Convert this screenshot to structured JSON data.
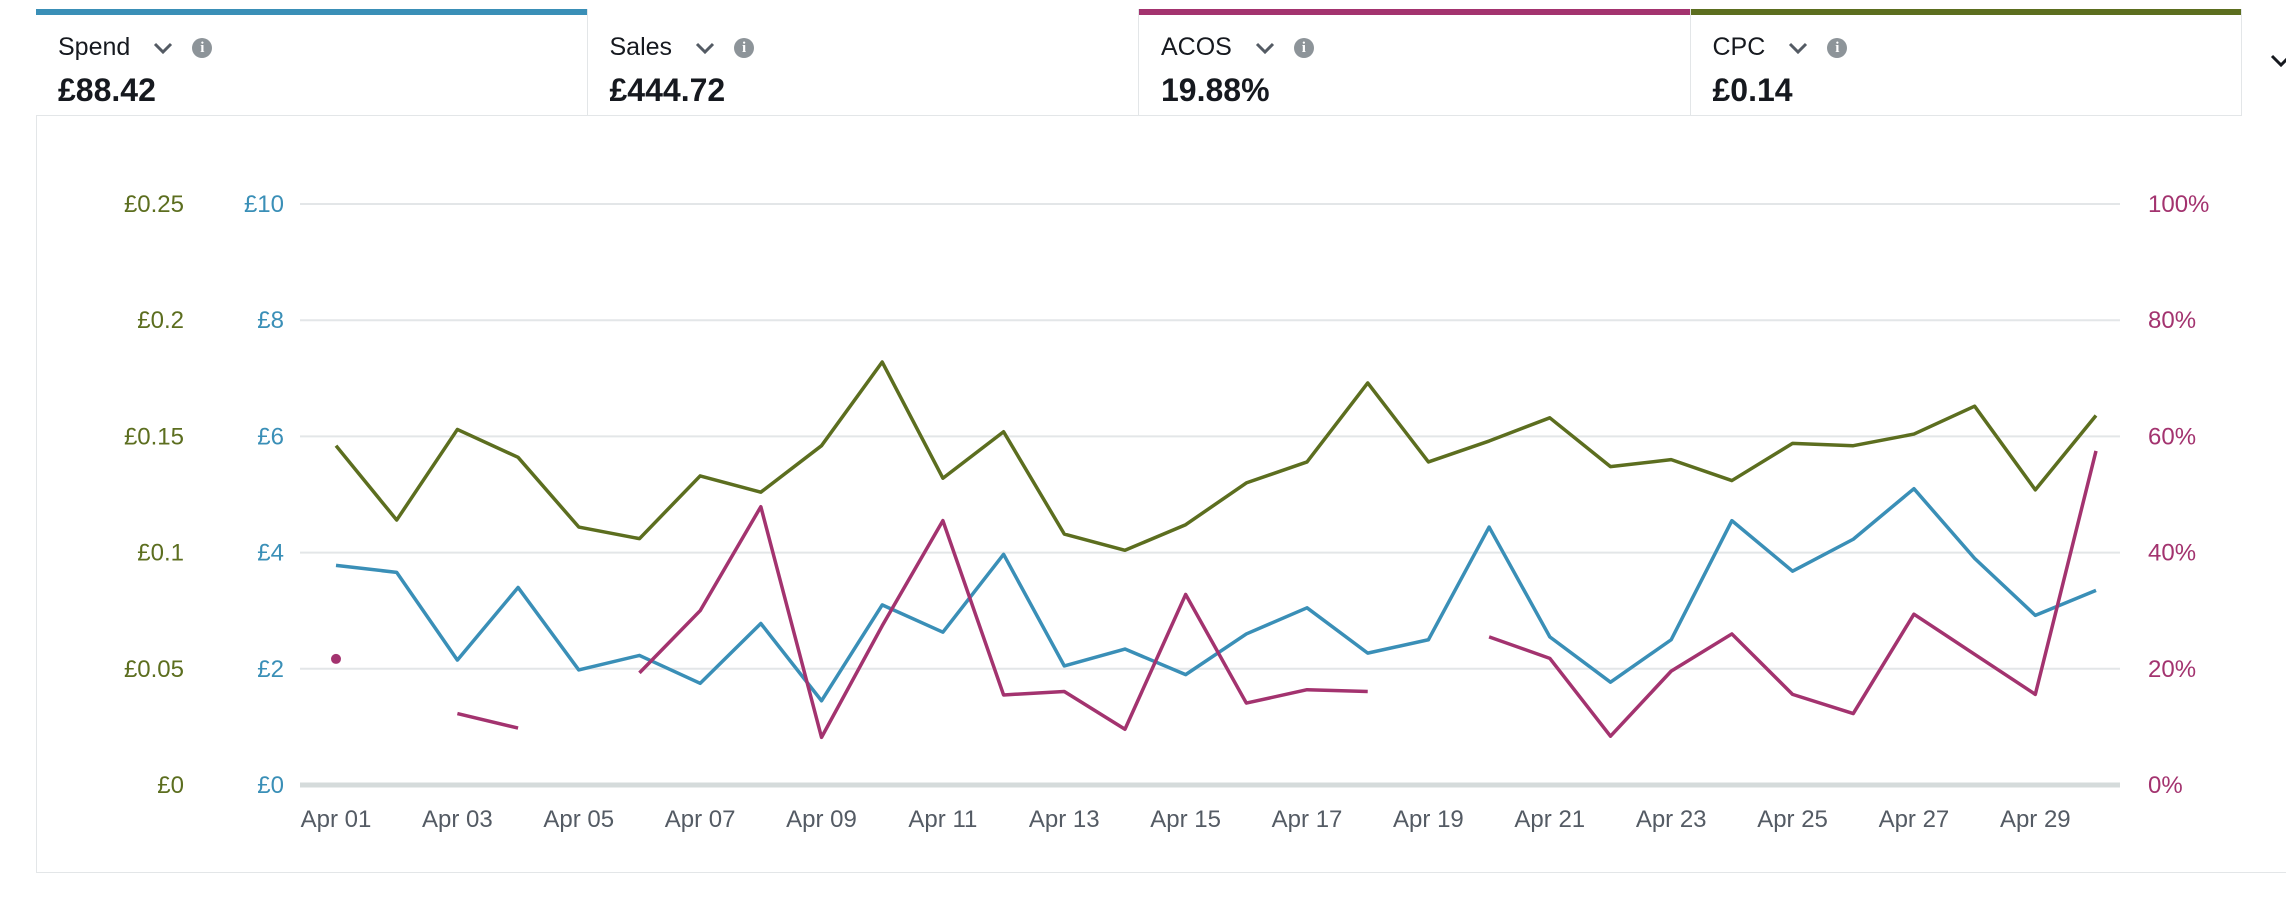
{
  "metrics": [
    {
      "name": "Spend",
      "value": "£88.42",
      "active": true,
      "color": "#3a8fb7"
    },
    {
      "name": "Sales",
      "value": "£444.72",
      "active": false,
      "color": ""
    },
    {
      "name": "ACOS",
      "value": "19.88%",
      "active": true,
      "color": "#a3336f"
    },
    {
      "name": "CPC",
      "value": "£0.14",
      "active": true,
      "color": "#5c6e1f"
    }
  ],
  "icons": {
    "dropdown": "chevron-down-icon",
    "info": "info-icon",
    "collapse": "chevron-down-icon"
  },
  "chart_data": {
    "type": "line",
    "x": [
      "Apr 01",
      "Apr 02",
      "Apr 03",
      "Apr 04",
      "Apr 05",
      "Apr 06",
      "Apr 07",
      "Apr 08",
      "Apr 09",
      "Apr 10",
      "Apr 11",
      "Apr 12",
      "Apr 13",
      "Apr 14",
      "Apr 15",
      "Apr 16",
      "Apr 17",
      "Apr 18",
      "Apr 19",
      "Apr 20",
      "Apr 21",
      "Apr 22",
      "Apr 23",
      "Apr 24",
      "Apr 25",
      "Apr 26",
      "Apr 27",
      "Apr 28",
      "Apr 29",
      "Apr 30"
    ],
    "x_tick_labels": [
      "Apr 01",
      "Apr 03",
      "Apr 05",
      "Apr 07",
      "Apr 09",
      "Apr 11",
      "Apr 13",
      "Apr 15",
      "Apr 17",
      "Apr 19",
      "Apr 21",
      "Apr 23",
      "Apr 25",
      "Apr 27",
      "Apr 29"
    ],
    "axes": {
      "cpc": {
        "side": "left-outer",
        "ylim": [
          0,
          0.25
        ],
        "ticks": [
          "£0",
          "£0.05",
          "£0.1",
          "£0.15",
          "£0.2",
          "£0.25"
        ],
        "color": "#5c6e1f"
      },
      "spend": {
        "side": "left-inner",
        "ylim": [
          0,
          10
        ],
        "ticks": [
          "£0",
          "£2",
          "£4",
          "£6",
          "£8",
          "£10"
        ],
        "color": "#3a8fb7"
      },
      "acos": {
        "side": "right",
        "ylim": [
          0,
          100
        ],
        "ticks": [
          "0%",
          "20%",
          "40%",
          "60%",
          "80%",
          "100%"
        ],
        "color": "#a3336f"
      }
    },
    "series": [
      {
        "name": "Spend",
        "axis": "spend",
        "color": "#3a8fb7",
        "values": [
          3.78,
          3.66,
          2.15,
          3.4,
          1.98,
          2.23,
          1.75,
          2.78,
          1.45,
          3.1,
          2.63,
          3.97,
          2.05,
          2.34,
          1.9,
          2.6,
          3.05,
          2.27,
          2.5,
          4.44,
          2.55,
          1.77,
          2.5,
          4.55,
          3.68,
          4.23,
          5.1,
          3.9,
          2.92,
          3.35
        ]
      },
      {
        "name": "ACOS",
        "axis": "acos",
        "color": "#a3336f",
        "values": [
          21.7,
          null,
          12.3,
          9.8,
          null,
          19.3,
          30,
          47.9,
          8.2,
          27.4,
          45.5,
          15.5,
          16.1,
          9.6,
          32.8,
          14.1,
          16.4,
          16.1,
          null,
          25.5,
          21.8,
          8.4,
          19.6,
          26,
          15.6,
          12.3,
          29.4,
          22.5,
          15.6,
          57.5
        ]
      },
      {
        "name": "CPC",
        "axis": "cpc",
        "color": "#5c6e1f",
        "values": [
          0.146,
          0.114,
          0.153,
          0.141,
          0.111,
          0.106,
          0.133,
          0.126,
          0.146,
          0.182,
          0.132,
          0.152,
          0.108,
          0.101,
          0.112,
          0.13,
          0.139,
          0.173,
          0.139,
          0.148,
          0.158,
          0.137,
          0.14,
          0.131,
          0.147,
          0.146,
          0.151,
          0.163,
          0.127,
          0.159
        ]
      }
    ],
    "grid": true
  }
}
